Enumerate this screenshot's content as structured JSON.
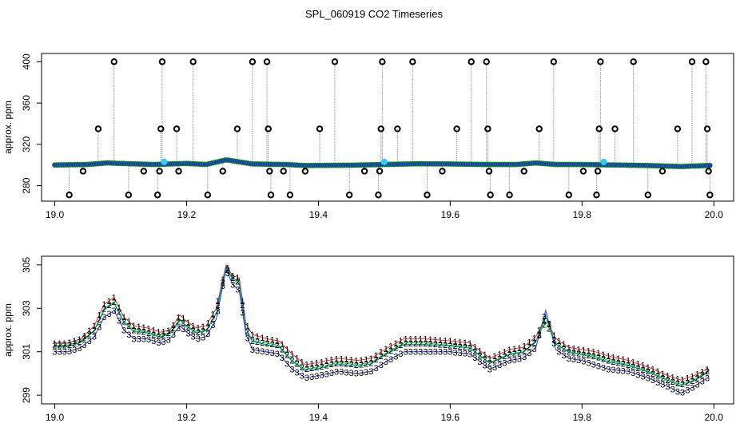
{
  "title": "SPL_060919  CO2 Timeseries",
  "colors": {
    "frame": "#000000",
    "spike_line": "#9a9a9a",
    "outlier_marker": "#000000",
    "main_marker": "#2a2ad6",
    "main_marker_edge": "#00a000",
    "highlight_marker": "#33ccee",
    "series_1": "#dd0000",
    "series_2": "#00bb00",
    "series_3": "#0000cc",
    "smooth_line": "#00a0a0"
  },
  "chart_data": [
    {
      "id": "top",
      "type": "scatter",
      "xlabel": "",
      "ylabel": "approx. ppm",
      "xlim": [
        18.98,
        20.03
      ],
      "ylim": [
        265,
        408
      ],
      "xticks": [
        19.0,
        19.2,
        19.4,
        19.6,
        19.8,
        20.0
      ],
      "xtick_labels": [
        "19.0",
        "19.2",
        "19.4",
        "19.6",
        "19.8",
        "20.0"
      ],
      "yticks": [
        280,
        320,
        360,
        400
      ],
      "ytick_labels": [
        "280",
        "320",
        "360",
        "400"
      ],
      "grid": false,
      "baseline": [
        [
          19.0,
          300
        ],
        [
          19.05,
          300.5
        ],
        [
          19.08,
          302
        ],
        [
          19.1,
          301.5
        ],
        [
          19.15,
          300.5
        ],
        [
          19.2,
          301.5
        ],
        [
          19.23,
          300.5
        ],
        [
          19.26,
          305
        ],
        [
          19.28,
          303
        ],
        [
          19.3,
          301
        ],
        [
          19.35,
          300.5
        ],
        [
          19.38,
          299.5
        ],
        [
          19.45,
          299.8
        ],
        [
          19.5,
          300.5
        ],
        [
          19.55,
          301.2
        ],
        [
          19.6,
          301
        ],
        [
          19.65,
          300.5
        ],
        [
          19.7,
          300.5
        ],
        [
          19.73,
          302
        ],
        [
          19.76,
          300.5
        ],
        [
          19.8,
          300.5
        ],
        [
          19.85,
          300
        ],
        [
          19.9,
          299.5
        ],
        [
          19.95,
          298.5
        ],
        [
          19.99,
          299.5
        ]
      ],
      "outliers": [
        {
          "x": 19.022,
          "y": 271
        },
        {
          "x": 19.043,
          "y": 294
        },
        {
          "x": 19.066,
          "y": 335
        },
        {
          "x": 19.09,
          "y": 400
        },
        {
          "x": 19.112,
          "y": 271
        },
        {
          "x": 19.135,
          "y": 294
        },
        {
          "x": 19.156,
          "y": 271
        },
        {
          "x": 19.159,
          "y": 294
        },
        {
          "x": 19.161,
          "y": 335
        },
        {
          "x": 19.163,
          "y": 400
        },
        {
          "x": 19.185,
          "y": 335
        },
        {
          "x": 19.188,
          "y": 294
        },
        {
          "x": 19.21,
          "y": 400
        },
        {
          "x": 19.232,
          "y": 271
        },
        {
          "x": 19.255,
          "y": 294
        },
        {
          "x": 19.277,
          "y": 335
        },
        {
          "x": 19.3,
          "y": 400
        },
        {
          "x": 19.322,
          "y": 400
        },
        {
          "x": 19.324,
          "y": 335
        },
        {
          "x": 19.326,
          "y": 294
        },
        {
          "x": 19.328,
          "y": 271
        },
        {
          "x": 19.347,
          "y": 294
        },
        {
          "x": 19.357,
          "y": 271
        },
        {
          "x": 19.38,
          "y": 294
        },
        {
          "x": 19.402,
          "y": 335
        },
        {
          "x": 19.425,
          "y": 400
        },
        {
          "x": 19.447,
          "y": 271
        },
        {
          "x": 19.47,
          "y": 294
        },
        {
          "x": 19.491,
          "y": 271
        },
        {
          "x": 19.493,
          "y": 294
        },
        {
          "x": 19.495,
          "y": 335
        },
        {
          "x": 19.497,
          "y": 400
        },
        {
          "x": 19.52,
          "y": 335
        },
        {
          "x": 19.543,
          "y": 400
        },
        {
          "x": 19.565,
          "y": 271
        },
        {
          "x": 19.588,
          "y": 294
        },
        {
          "x": 19.61,
          "y": 335
        },
        {
          "x": 19.632,
          "y": 400
        },
        {
          "x": 19.655,
          "y": 400
        },
        {
          "x": 19.657,
          "y": 335
        },
        {
          "x": 19.659,
          "y": 294
        },
        {
          "x": 19.661,
          "y": 271
        },
        {
          "x": 19.69,
          "y": 271
        },
        {
          "x": 19.712,
          "y": 294
        },
        {
          "x": 19.735,
          "y": 335
        },
        {
          "x": 19.757,
          "y": 400
        },
        {
          "x": 19.78,
          "y": 271
        },
        {
          "x": 19.802,
          "y": 294
        },
        {
          "x": 19.822,
          "y": 271
        },
        {
          "x": 19.824,
          "y": 294
        },
        {
          "x": 19.826,
          "y": 335
        },
        {
          "x": 19.828,
          "y": 400
        },
        {
          "x": 19.85,
          "y": 335
        },
        {
          "x": 19.878,
          "y": 400
        },
        {
          "x": 19.9,
          "y": 271
        },
        {
          "x": 19.922,
          "y": 294
        },
        {
          "x": 19.945,
          "y": 335
        },
        {
          "x": 19.967,
          "y": 400
        },
        {
          "x": 19.988,
          "y": 400
        },
        {
          "x": 19.99,
          "y": 335
        },
        {
          "x": 19.992,
          "y": 294
        },
        {
          "x": 19.994,
          "y": 271
        }
      ],
      "highlights": [
        {
          "x": 19.166,
          "y": 303
        },
        {
          "x": 19.5,
          "y": 303
        },
        {
          "x": 19.833,
          "y": 303
        }
      ]
    },
    {
      "id": "bottom",
      "type": "line",
      "xlabel": "",
      "ylabel": "approx. ppm",
      "xlim": [
        18.98,
        20.03
      ],
      "ylim": [
        298.6,
        305.4
      ],
      "xticks": [
        19.0,
        19.2,
        19.4,
        19.6,
        19.8,
        20.0
      ],
      "xtick_labels": [
        "19.0",
        "19.2",
        "19.4",
        "19.6",
        "19.8",
        "20.0"
      ],
      "yticks": [
        299,
        301,
        303,
        305
      ],
      "ytick_labels": [
        "299",
        "301",
        "303",
        "305"
      ],
      "grid": false,
      "x": [
        19.0,
        19.02,
        19.04,
        19.06,
        19.075,
        19.09,
        19.105,
        19.12,
        19.14,
        19.16,
        19.175,
        19.19,
        19.2,
        19.215,
        19.23,
        19.245,
        19.26,
        19.27,
        19.28,
        19.29,
        19.3,
        19.32,
        19.34,
        19.36,
        19.38,
        19.4,
        19.43,
        19.46,
        19.48,
        19.5,
        19.53,
        19.56,
        19.6,
        19.63,
        19.66,
        19.69,
        19.71,
        19.73,
        19.745,
        19.76,
        19.78,
        19.8,
        19.82,
        19.84,
        19.87,
        19.9,
        19.93,
        19.95,
        19.97,
        19.99
      ],
      "series": [
        {
          "name": "1",
          "glyph": "1",
          "values": [
            301.4,
            301.4,
            301.6,
            302.2,
            303.2,
            303.5,
            302.6,
            302.2,
            302.1,
            301.9,
            302.0,
            302.7,
            302.4,
            302.1,
            302.2,
            303.0,
            305.0,
            304.5,
            304.4,
            302.3,
            301.8,
            301.6,
            301.5,
            300.9,
            300.4,
            300.5,
            300.7,
            300.6,
            300.7,
            301.1,
            301.6,
            301.6,
            301.5,
            301.4,
            300.7,
            301.1,
            301.2,
            301.7,
            302.6,
            301.6,
            301.2,
            301.1,
            301.0,
            300.8,
            300.6,
            300.3,
            299.9,
            299.7,
            299.9,
            300.2
          ]
        },
        {
          "name": "2",
          "glyph": "2",
          "values": [
            301.3,
            301.3,
            301.5,
            302.0,
            303.0,
            303.3,
            302.4,
            302.0,
            301.9,
            301.7,
            301.9,
            302.5,
            302.2,
            301.9,
            302.0,
            302.8,
            304.9,
            304.4,
            304.2,
            302.1,
            301.5,
            301.4,
            301.3,
            300.6,
            300.2,
            300.3,
            300.5,
            300.4,
            300.5,
            300.9,
            301.4,
            301.4,
            301.3,
            301.2,
            300.5,
            300.9,
            301.0,
            301.5,
            302.4,
            301.4,
            301.0,
            300.9,
            300.8,
            300.6,
            300.4,
            300.1,
            299.7,
            299.5,
            299.7,
            300.1
          ]
        },
        {
          "name": "3",
          "glyph": "3",
          "values": [
            301.0,
            301.0,
            301.2,
            301.7,
            302.6,
            302.9,
            302.0,
            301.6,
            301.6,
            301.4,
            301.6,
            302.2,
            301.9,
            301.6,
            301.7,
            302.5,
            304.8,
            304.1,
            303.8,
            301.8,
            301.1,
            301.0,
            300.9,
            300.2,
            299.8,
            299.9,
            300.1,
            300.0,
            300.1,
            300.5,
            301.0,
            301.0,
            301.0,
            300.9,
            300.2,
            300.6,
            300.7,
            301.2,
            302.9,
            301.1,
            300.7,
            300.6,
            300.4,
            300.2,
            300.1,
            299.8,
            299.4,
            299.1,
            299.4,
            299.8
          ]
        }
      ]
    }
  ]
}
